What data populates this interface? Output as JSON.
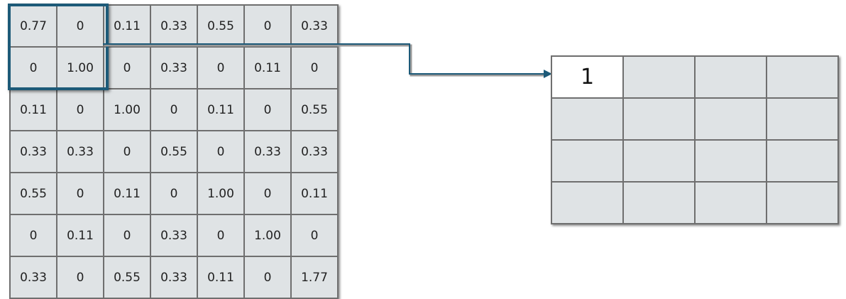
{
  "input_matrix": [
    [
      "0.77",
      "0",
      "0.11",
      "0.33",
      "0.55",
      "0",
      "0.33"
    ],
    [
      "0",
      "1.00",
      "0",
      "0.33",
      "0",
      "0.11",
      "0"
    ],
    [
      "0.11",
      "0",
      "1.00",
      "0",
      "0.11",
      "0",
      "0.55"
    ],
    [
      "0.33",
      "0.33",
      "0",
      "0.55",
      "0",
      "0.33",
      "0.33"
    ],
    [
      "0.55",
      "0",
      "0.11",
      "0",
      "1.00",
      "0",
      "0.11"
    ],
    [
      "0",
      "0.11",
      "0",
      "0.33",
      "0",
      "1.00",
      "0"
    ],
    [
      "0.33",
      "0",
      "0.55",
      "0.33",
      "0.11",
      "0",
      "1.77"
    ]
  ],
  "output_matrix": [
    [
      "1",
      "",
      "",
      ""
    ],
    [
      "",
      "",
      "",
      ""
    ],
    [
      "",
      "",
      "",
      ""
    ],
    [
      "",
      "",
      "",
      ""
    ]
  ],
  "colors": {
    "cell_fill": "#dfe3e5",
    "filled_cell": "#ffffff",
    "highlight": "#1d5a78",
    "grid_line": "#6f6f6f"
  }
}
